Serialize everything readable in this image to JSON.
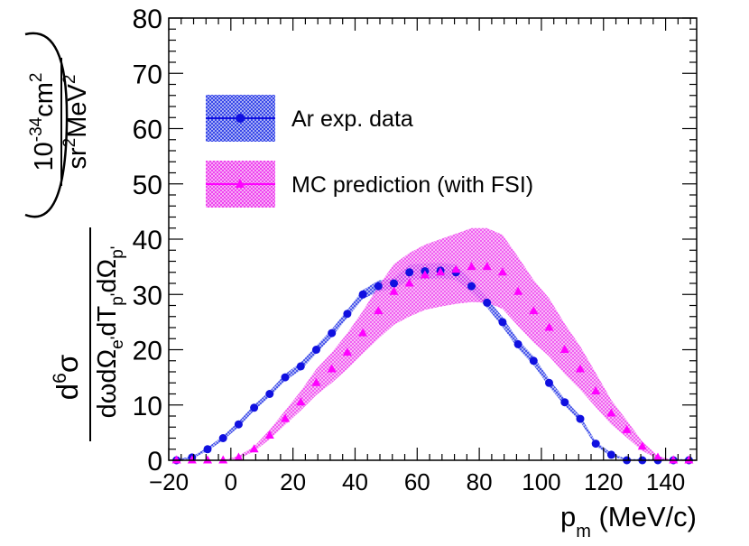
{
  "chart_data": {
    "type": "scatter",
    "x_axis": {
      "title_main": "p",
      "title_sub": "m",
      "title_unit": " (MeV/c)",
      "range": [
        -20,
        150
      ],
      "major_ticks": [
        -20,
        0,
        20,
        40,
        60,
        80,
        100,
        120,
        140
      ],
      "tick_labels": [
        "−20",
        "0",
        "20",
        "40",
        "60",
        "80",
        "100",
        "120",
        "140"
      ]
    },
    "y_axis": {
      "range": [
        0,
        80
      ],
      "major_ticks": [
        0,
        10,
        20,
        30,
        40,
        50,
        60,
        70,
        80
      ],
      "tick_labels": [
        "0",
        "10",
        "20",
        "30",
        "40",
        "50",
        "60",
        "70",
        "80"
      ],
      "title": {
        "numerator": {
          "d": "d",
          "power": "6",
          "sigma": "σ"
        },
        "denominator": {
          "part1": "dωdΩ",
          "sub1": "e'",
          "part2": "dT",
          "sub2": "p'",
          "part3": "dΩ",
          "sub3": "p'"
        },
        "unit_numerator": {
          "base": "10",
          "exp": "-34",
          "unit": "cm",
          "unit_exp": "2"
        },
        "unit_denominator": {
          "base": "sr",
          "exp1": "2",
          "unit": "MeV",
          "exp2": "2"
        }
      }
    },
    "grid": false,
    "legend": {
      "placement": "top-left",
      "entries": [
        {
          "label": "Ar exp. data",
          "series": "data"
        },
        {
          "label": "MC prediction (with FSI)",
          "series": "mc"
        }
      ]
    },
    "series": [
      {
        "name": "Ar exp. data",
        "marker": "circle",
        "color": "#1010e0",
        "band_color": "#4a5af0",
        "x": [
          -17.5,
          -12.5,
          -7.5,
          -2.5,
          2.5,
          7.5,
          12.5,
          17.5,
          22.5,
          27.5,
          32.5,
          37.5,
          42.5,
          47.5,
          52.5,
          57.5,
          62.5,
          67.5,
          72.5,
          77.5,
          82.5,
          87.5,
          92.5,
          97.5,
          102.5,
          107.5,
          112.5,
          117.5,
          122.5,
          127.5,
          132.5,
          137.5,
          142.5,
          147.5
        ],
        "y": [
          0.0,
          0.5,
          2.0,
          4.0,
          6.5,
          9.5,
          12.0,
          15.0,
          17.0,
          20.0,
          23.0,
          26.5,
          30.0,
          31.5,
          32.0,
          34.0,
          34.2,
          34.3,
          34.0,
          31.5,
          28.5,
          25.0,
          21.0,
          18.0,
          14.0,
          10.5,
          7.5,
          3.0,
          1.0,
          0.0,
          0.0,
          0.0,
          0.0,
          0.0
        ],
        "band_low": [
          0.0,
          0.3,
          1.7,
          3.6,
          6.0,
          9.0,
          11.5,
          14.4,
          16.3,
          19.3,
          22.3,
          25.8,
          29.2,
          30.5,
          31.0,
          32.6,
          32.8,
          32.9,
          32.6,
          30.4,
          27.6,
          24.1,
          20.2,
          17.2,
          13.3,
          9.9,
          7.0,
          2.6,
          0.7,
          0.0,
          0.0,
          0.0,
          0.0,
          0.0
        ],
        "band_high": [
          0.2,
          0.7,
          2.3,
          4.4,
          7.0,
          10.0,
          12.5,
          15.6,
          17.7,
          20.7,
          23.7,
          27.2,
          30.8,
          32.5,
          33.0,
          35.4,
          35.6,
          35.7,
          35.4,
          32.6,
          29.4,
          25.9,
          21.8,
          18.8,
          14.7,
          11.1,
          8.0,
          3.4,
          1.3,
          0.2,
          0.2,
          0.2,
          0.2,
          0.2
        ]
      },
      {
        "name": "MC prediction (with FSI)",
        "marker": "triangle",
        "color": "#ff00ff",
        "band_color": "#ee66ee",
        "x": [
          -17.5,
          -12.5,
          -7.5,
          -2.5,
          2.5,
          7.5,
          12.5,
          17.5,
          22.5,
          27.5,
          32.5,
          37.5,
          42.5,
          47.5,
          52.5,
          57.5,
          62.5,
          67.5,
          72.5,
          77.5,
          82.5,
          87.5,
          92.5,
          97.5,
          102.5,
          107.5,
          112.5,
          117.5,
          122.5,
          127.5,
          132.5,
          137.5,
          142.5,
          147.5
        ],
        "y": [
          0.0,
          0.0,
          0.0,
          0.0,
          0.5,
          2.0,
          4.5,
          7.5,
          10.5,
          14.0,
          16.5,
          19.5,
          23.0,
          27.0,
          30.5,
          32.0,
          33.5,
          34.0,
          34.5,
          35.0,
          35.0,
          34.0,
          30.5,
          27.0,
          24.0,
          20.0,
          16.5,
          12.5,
          8.5,
          5.5,
          2.5,
          0.5,
          0.0,
          0.0
        ],
        "band_low": [
          0.0,
          0.0,
          0.0,
          0.0,
          0.3,
          1.6,
          3.8,
          6.4,
          9.0,
          11.8,
          14.0,
          16.5,
          19.3,
          22.0,
          24.5,
          26.0,
          27.2,
          27.8,
          28.3,
          28.6,
          28.5,
          27.4,
          24.3,
          21.3,
          18.8,
          15.6,
          12.8,
          9.6,
          6.5,
          4.1,
          1.7,
          0.2,
          0.0,
          0.0
        ],
        "band_high": [
          0.0,
          0.0,
          0.0,
          0.0,
          0.8,
          2.5,
          5.5,
          9.0,
          12.5,
          16.5,
          19.5,
          23.0,
          27.0,
          31.5,
          35.5,
          37.5,
          39.0,
          40.0,
          41.0,
          42.0,
          42.0,
          40.8,
          36.8,
          32.6,
          29.3,
          24.7,
          20.6,
          15.8,
          10.9,
          7.2,
          3.4,
          0.8,
          0.0,
          0.0
        ]
      }
    ]
  }
}
